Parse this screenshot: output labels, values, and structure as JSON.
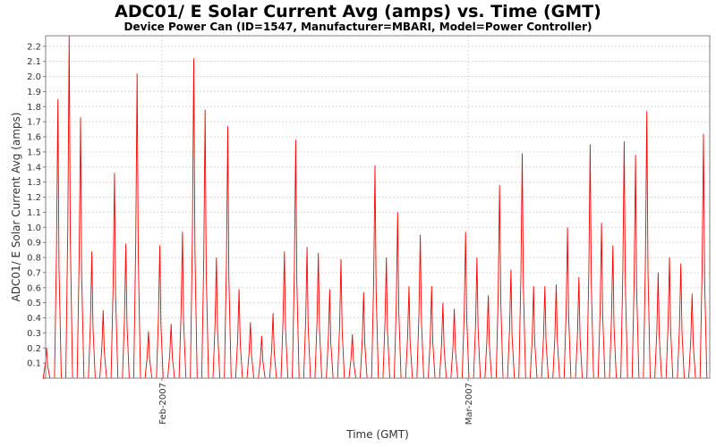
{
  "chart_data": {
    "type": "line",
    "title": "ADC01/ E Solar Current Avg (amps) vs. Time (GMT)",
    "subtitle": "Device Power Can (ID=1547, Manufacturer=MBARI, Model=Power Controller)",
    "xlabel": "Time (GMT)",
    "ylabel": "ADC01/ E Solar Current Avg (amps)",
    "x_axis": "date (daily cycles, ~2007-01-15 to ~2007-04-11)",
    "x_ticks": [
      "Feb-2007",
      "Mar-2007"
    ],
    "y_ticks": [
      0.1,
      0.2,
      0.3,
      0.4,
      0.5,
      0.6,
      0.7,
      0.8,
      0.9,
      1.0,
      1.1,
      1.2,
      1.3,
      1.4,
      1.5,
      1.6,
      1.7,
      1.8,
      1.9,
      2.0,
      2.1,
      2.2
    ],
    "ylim": [
      0,
      2.27
    ],
    "grid": true,
    "series": [
      {
        "color": "#ff0000",
        "daily_peaks": [
          0.2,
          1.85,
          2.27,
          1.73,
          0.84,
          0.45,
          1.36,
          0.89,
          2.02,
          0.31,
          0.88,
          0.36,
          0.97,
          2.12,
          1.78,
          0.8,
          1.67,
          0.59,
          0.37,
          0.28,
          0.43,
          0.84,
          1.58,
          0.87,
          0.83,
          0.59,
          0.79,
          0.29,
          0.57,
          1.41,
          0.8,
          1.1,
          0.61,
          0.95,
          0.61,
          0.5,
          0.46,
          0.97,
          0.8,
          0.55,
          1.28,
          0.72,
          1.49,
          0.61,
          0.61,
          0.62,
          1.0,
          0.67,
          1.55,
          1.03,
          0.88,
          1.57,
          1.48,
          1.77,
          0.7,
          0.8,
          0.76,
          0.56,
          1.62
        ]
      }
    ]
  }
}
